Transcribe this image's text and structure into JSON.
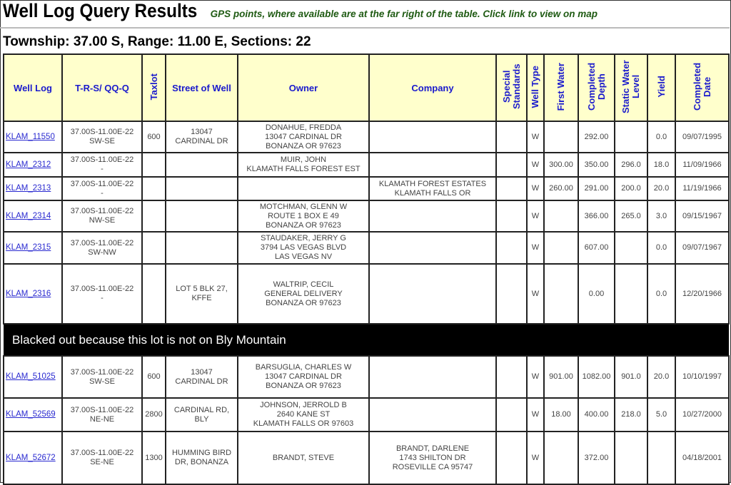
{
  "header": {
    "title": "Well Log Query Results",
    "note": "GPS points, where available are at the far right of the table. Click link to view on map",
    "subtitle": "Township: 37.00 S, Range: 11.00 E, Sections: 22"
  },
  "colors": {
    "header_bg": "#ffffcc",
    "header_text": "#1a1acc",
    "note_text": "#1e5a12",
    "link": "#2a2ad0"
  },
  "columns": [
    {
      "label": "Well Log",
      "vertical": false
    },
    {
      "label": "T-R-S/ QQ-Q",
      "vertical": false
    },
    {
      "label": "Taxlot",
      "vertical": true
    },
    {
      "label": "Street of Well",
      "vertical": false
    },
    {
      "label": "Owner",
      "vertical": false
    },
    {
      "label": "Company",
      "vertical": false
    },
    {
      "label": "Special Standards",
      "vertical": true
    },
    {
      "label": "Well Type",
      "vertical": true
    },
    {
      "label": "First Water",
      "vertical": true
    },
    {
      "label": "Completed Depth",
      "vertical": true
    },
    {
      "label": "Static Water Level",
      "vertical": true
    },
    {
      "label": "Yield",
      "vertical": true
    },
    {
      "label": "Completed Date",
      "vertical": true
    }
  ],
  "rows": [
    {
      "cells": [
        "KLAM_11550",
        "37.00S-11.00E-22\nSW-SE",
        "600",
        "13047\nCARDINAL DR",
        "DONAHUE, FREDDA\n13047 CARDINAL DR\nBONANZA OR 97623",
        "",
        "",
        "W",
        "",
        "292.00",
        "",
        "0.0",
        "09/07/1995"
      ]
    },
    {
      "cells": [
        "KLAM_2312",
        "37.00S-11.00E-22\n-",
        "",
        "",
        "MUIR, JOHN\nKLAMATH FALLS FOREST EST",
        "",
        "",
        "W",
        "300.00",
        "350.00",
        "296.0",
        "18.0",
        "11/09/1966"
      ]
    },
    {
      "cells": [
        "KLAM_2313",
        "37.00S-11.00E-22\n-",
        "",
        "",
        "",
        "KLAMATH FOREST ESTATES\nKLAMATH FALLS OR",
        "",
        "W",
        "260.00",
        "291.00",
        "200.0",
        "20.0",
        "11/19/1966"
      ]
    },
    {
      "cells": [
        "KLAM_2314",
        "37.00S-11.00E-22\nNW-SE",
        "",
        "",
        "MOTCHMAN, GLENN W\nROUTE 1 BOX E 49\nBONANZA OR 97623",
        "",
        "",
        "W",
        "",
        "366.00",
        "265.0",
        "3.0",
        "09/15/1967"
      ]
    },
    {
      "cells": [
        "KLAM_2315",
        "37.00S-11.00E-22\nSW-NW",
        "",
        "",
        "STAUDAKER, JERRY G\n3794 LAS VEGAS BLVD\nLAS VEGAS NV",
        "",
        "",
        "W",
        "",
        "607.00",
        "",
        "0.0",
        "09/07/1967"
      ]
    },
    {
      "cells": [
        "KLAM_2316",
        "37.00S-11.00E-22\n-",
        "",
        "LOT 5 BLK 27,\nKFFE",
        "WALTRIP, CECIL\nGENERAL DELIVERY\nBONANZA OR 97623",
        "",
        "",
        "W",
        "",
        "0.00",
        "",
        "0.0",
        "12/20/1966"
      ]
    },
    {
      "blackout": "Blacked out because this lot is not on Bly Mountain"
    },
    {
      "cells": [
        "KLAM_51025",
        "37.00S-11.00E-22\nSW-SE",
        "600",
        "13047\nCARDINAL DR",
        "BARSUGLIA, CHARLES W\n13047 CARDINAL DR\nBONANZA OR 97623",
        "",
        "",
        "W",
        "901.00",
        "1082.00",
        "901.0",
        "20.0",
        "10/10/1997"
      ]
    },
    {
      "cells": [
        "KLAM_52569",
        "37.00S-11.00E-22\nNE-NE",
        "2800",
        "CARDINAL RD,\nBLY",
        "JOHNSON, JERROLD B\n2640 KANE ST\nKLAMATH FALLS OR 97603",
        "",
        "",
        "W",
        "18.00",
        "400.00",
        "218.0",
        "5.0",
        "10/27/2000"
      ]
    },
    {
      "cells": [
        "KLAM_52672",
        "37.00S-11.00E-22\nSE-NE",
        "1300",
        "HUMMING BIRD\nDR, BONANZA",
        "BRANDT, STEVE",
        "BRANDT, DARLENE\n1743 SHILTON DR\nROSEVILLE CA 95747",
        "",
        "W",
        "",
        "372.00",
        "",
        "",
        "04/18/2001"
      ]
    }
  ]
}
